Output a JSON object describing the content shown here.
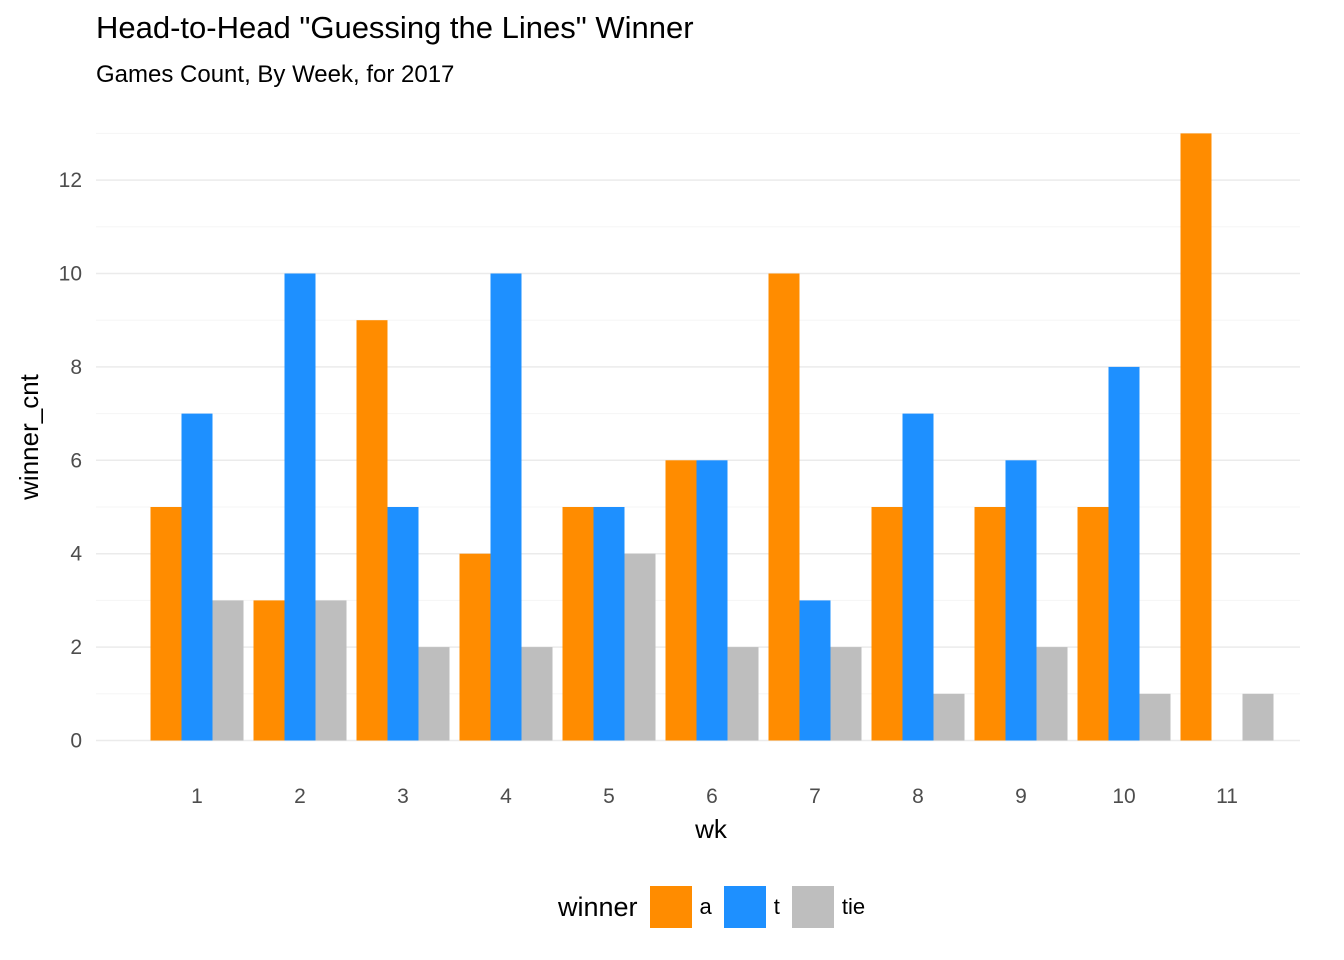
{
  "chart_data": {
    "type": "bar",
    "title": "Head-to-Head \"Guessing the Lines\" Winner",
    "subtitle": "Games Count, By Week, for 2017",
    "xlabel": "wk",
    "ylabel": "winner_cnt",
    "categories": [
      "1",
      "2",
      "3",
      "4",
      "5",
      "6",
      "7",
      "8",
      "9",
      "10",
      "11"
    ],
    "series": [
      {
        "name": "a",
        "color": "#FF8C00",
        "values": [
          5,
          3,
          9,
          4,
          5,
          6,
          10,
          5,
          5,
          5,
          13
        ]
      },
      {
        "name": "t",
        "color": "#1E90FF",
        "values": [
          7,
          10,
          5,
          10,
          5,
          6,
          3,
          7,
          6,
          8,
          null
        ]
      },
      {
        "name": "tie",
        "color": "#BEBEBE",
        "values": [
          3,
          3,
          2,
          2,
          4,
          2,
          2,
          1,
          2,
          1,
          1
        ]
      }
    ],
    "ylim": [
      0,
      13
    ],
    "yticks": [
      0,
      2,
      4,
      6,
      8,
      10,
      12
    ],
    "grid": true,
    "legend_title": "winner",
    "legend_position": "bottom",
    "style": {
      "grid_major": "#EBEBEB",
      "grid_minor": "#F5F5F5",
      "tick_text": "#4D4D4D"
    }
  }
}
